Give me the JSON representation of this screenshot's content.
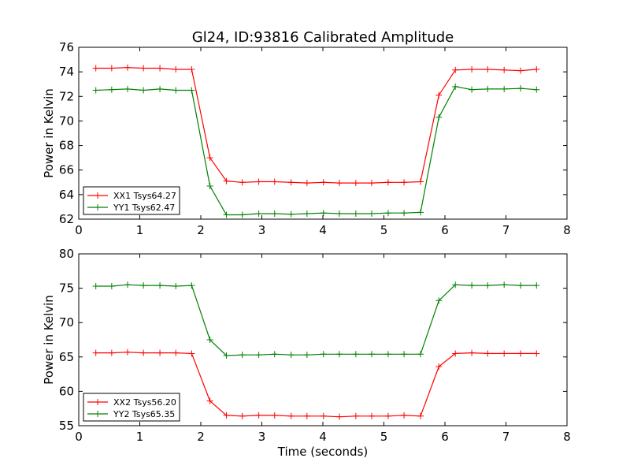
{
  "chart_data": [
    {
      "type": "line",
      "title": "Gl24, ID:93816 Calibrated Amplitude",
      "xlabel": "",
      "ylabel": "Power in Kelvin",
      "xlim": [
        0,
        8
      ],
      "ylim": [
        62,
        76
      ],
      "xticks": [
        0,
        1,
        2,
        3,
        4,
        5,
        6,
        7,
        8
      ],
      "yticks": [
        62,
        64,
        66,
        68,
        70,
        72,
        74,
        76
      ],
      "grid": false,
      "legend_position": "lower-left",
      "x": [
        0.28,
        0.54,
        0.8,
        1.06,
        1.33,
        1.59,
        1.85,
        2.15,
        2.42,
        2.68,
        2.95,
        3.21,
        3.48,
        3.74,
        4.01,
        4.27,
        4.54,
        4.8,
        5.07,
        5.33,
        5.6,
        5.9,
        6.17,
        6.44,
        6.7,
        6.97,
        7.24,
        7.5
      ],
      "series": [
        {
          "name": "XX1 Tsys64.27",
          "color": "#ff0000",
          "values": [
            74.3,
            74.3,
            74.35,
            74.3,
            74.3,
            74.2,
            74.2,
            67.0,
            65.1,
            65.0,
            65.05,
            65.05,
            65.0,
            64.95,
            65.0,
            64.95,
            64.95,
            64.95,
            65.0,
            65.0,
            65.05,
            72.1,
            74.15,
            74.2,
            74.2,
            74.15,
            74.1,
            74.2
          ]
        },
        {
          "name": "YY1 Tsys62.47",
          "color": "#008000",
          "values": [
            72.5,
            72.55,
            72.6,
            72.5,
            72.6,
            72.5,
            72.5,
            64.7,
            62.35,
            62.35,
            62.45,
            62.45,
            62.4,
            62.45,
            62.5,
            62.45,
            62.45,
            62.45,
            62.5,
            62.5,
            62.55,
            70.3,
            72.8,
            72.55,
            72.6,
            72.6,
            72.65,
            72.55
          ]
        }
      ]
    },
    {
      "type": "line",
      "title": "",
      "xlabel": "Time (seconds)",
      "ylabel": "Power in Kelvin",
      "xlim": [
        0,
        8
      ],
      "ylim": [
        55,
        80
      ],
      "xticks": [
        0,
        1,
        2,
        3,
        4,
        5,
        6,
        7,
        8
      ],
      "yticks": [
        55,
        60,
        65,
        70,
        75,
        80
      ],
      "grid": false,
      "legend_position": "lower-left",
      "x": [
        0.28,
        0.54,
        0.8,
        1.06,
        1.33,
        1.59,
        1.85,
        2.15,
        2.42,
        2.68,
        2.95,
        3.21,
        3.48,
        3.74,
        4.01,
        4.27,
        4.54,
        4.8,
        5.07,
        5.33,
        5.6,
        5.9,
        6.17,
        6.44,
        6.7,
        6.97,
        7.24,
        7.5
      ],
      "series": [
        {
          "name": "XX2 Tsys56.20",
          "color": "#ff0000",
          "values": [
            65.6,
            65.6,
            65.7,
            65.6,
            65.6,
            65.6,
            65.5,
            58.6,
            56.5,
            56.4,
            56.5,
            56.5,
            56.4,
            56.4,
            56.4,
            56.3,
            56.4,
            56.4,
            56.4,
            56.5,
            56.4,
            63.6,
            65.5,
            65.6,
            65.5,
            65.5,
            65.5,
            65.5
          ]
        },
        {
          "name": "YY2 Tsys65.35",
          "color": "#008000",
          "values": [
            75.3,
            75.3,
            75.5,
            75.4,
            75.4,
            75.3,
            75.4,
            67.5,
            65.2,
            65.3,
            65.3,
            65.4,
            65.3,
            65.3,
            65.4,
            65.4,
            65.4,
            65.4,
            65.4,
            65.4,
            65.4,
            73.2,
            75.5,
            75.4,
            75.4,
            75.5,
            75.4,
            75.4
          ]
        }
      ]
    }
  ]
}
